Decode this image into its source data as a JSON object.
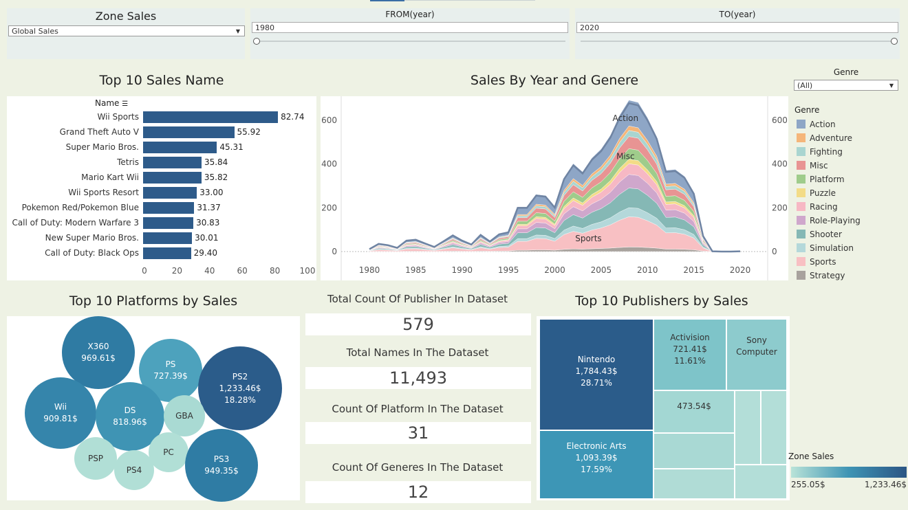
{
  "filters": {
    "zone": {
      "title": "Zone Sales",
      "value": "Global Sales"
    },
    "from": {
      "title": "FROM(year)",
      "value": "1980"
    },
    "to": {
      "title": "TO(year)",
      "value": "2020"
    }
  },
  "top_names": {
    "title": "Top 10 Sales Name",
    "header": "Name",
    "items": [
      {
        "name": "Wii Sports",
        "value": 82.74,
        "label": "82.74"
      },
      {
        "name": "Grand Theft Auto V",
        "value": 55.92,
        "label": "55.92"
      },
      {
        "name": "Super Mario Bros.",
        "value": 45.31,
        "label": "45.31"
      },
      {
        "name": "Tetris",
        "value": 35.84,
        "label": "35.84"
      },
      {
        "name": "Mario Kart Wii",
        "value": 35.82,
        "label": "35.82"
      },
      {
        "name": "Wii Sports Resort",
        "value": 33.0,
        "label": "33.00"
      },
      {
        "name": "Pokemon Red/Pokemon Blue",
        "value": 31.37,
        "label": "31.37"
      },
      {
        "name": "Call of Duty: Modern Warfare 3",
        "value": 30.83,
        "label": "30.83"
      },
      {
        "name": "New Super Mario Bros.",
        "value": 30.01,
        "label": "30.01"
      },
      {
        "name": "Call of Duty: Black Ops",
        "value": 29.4,
        "label": "29.40"
      }
    ],
    "ticks": [
      "0",
      "20",
      "40",
      "60",
      "80",
      "100"
    ]
  },
  "area": {
    "title": "Sales By Year and Genere",
    "x_ticks": [
      "1980",
      "1985",
      "1990",
      "1995",
      "2000",
      "2005",
      "2010",
      "2015",
      "2020"
    ],
    "y_ticks": [
      "0",
      "200",
      "400",
      "600"
    ],
    "labels": [
      "Action",
      "Misc",
      "Sports"
    ]
  },
  "genre": {
    "filter_title": "Genre",
    "filter_value": "(All)",
    "legend_title": "Genre",
    "items": [
      {
        "name": "Action",
        "color": "#8ea6c6"
      },
      {
        "name": "Adventure",
        "color": "#f5b67a"
      },
      {
        "name": "Fighting",
        "color": "#a9d5d0"
      },
      {
        "name": "Misc",
        "color": "#e89493"
      },
      {
        "name": "Platform",
        "color": "#9fcc8b"
      },
      {
        "name": "Puzzle",
        "color": "#f3dc87"
      },
      {
        "name": "Racing",
        "color": "#f7b8c4"
      },
      {
        "name": "Role-Playing",
        "color": "#cfa7cc"
      },
      {
        "name": "Shooter",
        "color": "#85b8b5"
      },
      {
        "name": "Simulation",
        "color": "#b4d8da"
      },
      {
        "name": "Sports",
        "color": "#f8c0c3"
      },
      {
        "name": "Strategy",
        "color": "#a8a29d"
      }
    ]
  },
  "platforms": {
    "title": "Top 10 Platforms by Sales",
    "bubbles": [
      {
        "name": "X360",
        "value": "969.61$",
        "pct": "",
        "color": "#2f7ba3"
      },
      {
        "name": "PS",
        "value": "727.39$",
        "pct": "",
        "color": "#4da2bd"
      },
      {
        "name": "PS2",
        "value": "1,233.46$",
        "pct": "18.28%",
        "color": "#2b5c8a"
      },
      {
        "name": "Wii",
        "value": "909.81$",
        "pct": "",
        "color": "#3585ab"
      },
      {
        "name": "DS",
        "value": "818.96$",
        "pct": "",
        "color": "#3f94b4"
      },
      {
        "name": "GBA",
        "value": "",
        "pct": "",
        "color": "#a9dad3"
      },
      {
        "name": "PSP",
        "value": "",
        "pct": "",
        "color": "#b1dfd6"
      },
      {
        "name": "PC",
        "value": "",
        "pct": "",
        "color": "#b1dfd6"
      },
      {
        "name": "PS4",
        "value": "",
        "pct": "",
        "color": "#b1dfd6"
      },
      {
        "name": "PS3",
        "value": "949.35$",
        "pct": "",
        "color": "#2f7ca4"
      }
    ]
  },
  "kpis": [
    {
      "label": "Total Count Of Publisher In Dataset",
      "value": "579"
    },
    {
      "label": "Total Names In The Dataset",
      "value": "11,493"
    },
    {
      "label": "Count Of Platform In The Dataset",
      "value": "31"
    },
    {
      "label": "Count Of Generes In The Dataset",
      "value": "12"
    }
  ],
  "publishers": {
    "title": "Top 10 Publishers by Sales",
    "nintendo": {
      "name": "Nintendo",
      "value": "1,784.43$",
      "pct": "28.71%"
    },
    "ea": {
      "name": "Electronic Arts",
      "value": "1,093.39$",
      "pct": "17.59%"
    },
    "activision": {
      "name": "Activision",
      "value": "721.41$",
      "pct": "11.61%"
    },
    "sony": {
      "name": "Sony Computer",
      "value": "",
      "pct": ""
    },
    "other_value": "473.54$"
  },
  "color_legend": {
    "title": "Zone Sales",
    "min": "255.05$",
    "max": "1,233.46$"
  }
}
